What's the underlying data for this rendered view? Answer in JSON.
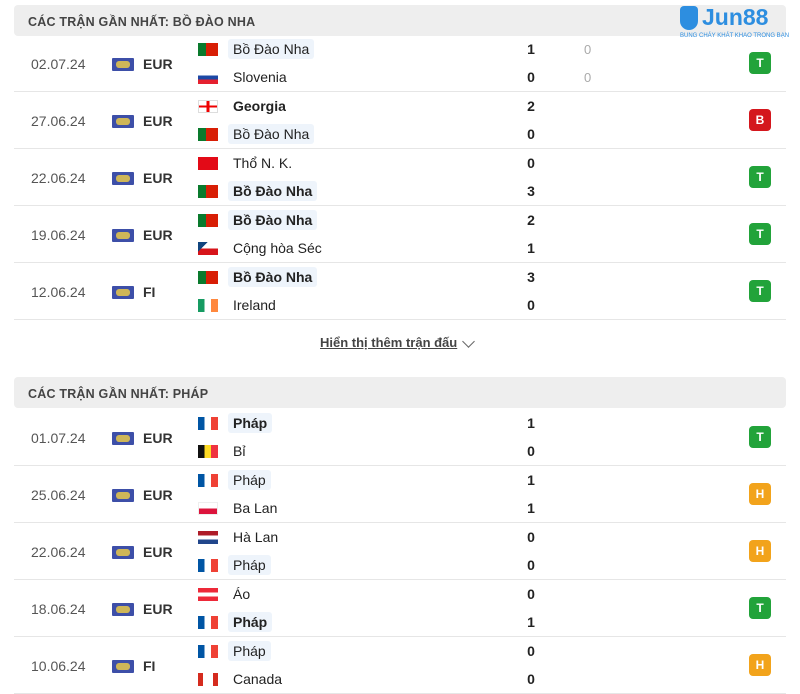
{
  "logo": {
    "text": "Jun88",
    "tagline": "BUNG CHÁY KHÁT KHAO TRONG BẠN"
  },
  "show_more": "Hiển thị thêm trận đấu",
  "colors": {
    "T": "#22a33a",
    "B": "#d4171d",
    "H": "#f2a31b"
  },
  "sections": [
    {
      "title": "CÁC TRẬN GẦN NHẤT: BỒ ĐÀO NHA",
      "matches": [
        {
          "date": "02.07.24",
          "comp": "EUR",
          "result": "T",
          "home": {
            "name": "Bồ Đào Nha",
            "flag": "pt",
            "score": "1",
            "ht": "0",
            "bold": false,
            "hl": true
          },
          "away": {
            "name": "Slovenia",
            "flag": "si",
            "score": "0",
            "ht": "0",
            "bold": false,
            "hl": false
          }
        },
        {
          "date": "27.06.24",
          "comp": "EUR",
          "result": "B",
          "home": {
            "name": "Georgia",
            "flag": "ge",
            "score": "2",
            "bold": true,
            "hl": false
          },
          "away": {
            "name": "Bồ Đào Nha",
            "flag": "pt",
            "score": "0",
            "bold": false,
            "hl": true
          }
        },
        {
          "date": "22.06.24",
          "comp": "EUR",
          "result": "T",
          "home": {
            "name": "Thổ N. K.",
            "flag": "tr",
            "score": "0",
            "bold": false,
            "hl": false
          },
          "away": {
            "name": "Bồ Đào Nha",
            "flag": "pt",
            "score": "3",
            "bold": true,
            "hl": true
          }
        },
        {
          "date": "19.06.24",
          "comp": "EUR",
          "result": "T",
          "home": {
            "name": "Bồ Đào Nha",
            "flag": "pt",
            "score": "2",
            "bold": true,
            "hl": true
          },
          "away": {
            "name": "Cộng hòa Séc",
            "flag": "cz",
            "score": "1",
            "bold": false,
            "hl": false
          }
        },
        {
          "date": "12.06.24",
          "comp": "FI",
          "result": "T",
          "home": {
            "name": "Bồ Đào Nha",
            "flag": "pt",
            "score": "3",
            "bold": true,
            "hl": true
          },
          "away": {
            "name": "Ireland",
            "flag": "ie",
            "score": "0",
            "bold": false,
            "hl": false
          }
        }
      ]
    },
    {
      "title": "CÁC TRẬN GẦN NHẤT: PHÁP",
      "matches": [
        {
          "date": "01.07.24",
          "comp": "EUR",
          "result": "T",
          "home": {
            "name": "Pháp",
            "flag": "fr",
            "score": "1",
            "bold": true,
            "hl": true
          },
          "away": {
            "name": "Bỉ",
            "flag": "be",
            "score": "0",
            "bold": false,
            "hl": false
          }
        },
        {
          "date": "25.06.24",
          "comp": "EUR",
          "result": "H",
          "home": {
            "name": "Pháp",
            "flag": "fr",
            "score": "1",
            "bold": false,
            "hl": true
          },
          "away": {
            "name": "Ba Lan",
            "flag": "pl",
            "score": "1",
            "bold": false,
            "hl": false
          }
        },
        {
          "date": "22.06.24",
          "comp": "EUR",
          "result": "H",
          "home": {
            "name": "Hà Lan",
            "flag": "nl",
            "score": "0",
            "bold": false,
            "hl": false
          },
          "away": {
            "name": "Pháp",
            "flag": "fr",
            "score": "0",
            "bold": false,
            "hl": true
          }
        },
        {
          "date": "18.06.24",
          "comp": "EUR",
          "result": "T",
          "home": {
            "name": "Áo",
            "flag": "at",
            "score": "0",
            "bold": false,
            "hl": false
          },
          "away": {
            "name": "Pháp",
            "flag": "fr",
            "score": "1",
            "bold": true,
            "hl": true
          }
        },
        {
          "date": "10.06.24",
          "comp": "FI",
          "result": "H",
          "home": {
            "name": "Pháp",
            "flag": "fr",
            "score": "0",
            "bold": false,
            "hl": true
          },
          "away": {
            "name": "Canada",
            "flag": "ca",
            "score": "0",
            "bold": false,
            "hl": false
          }
        }
      ]
    }
  ]
}
